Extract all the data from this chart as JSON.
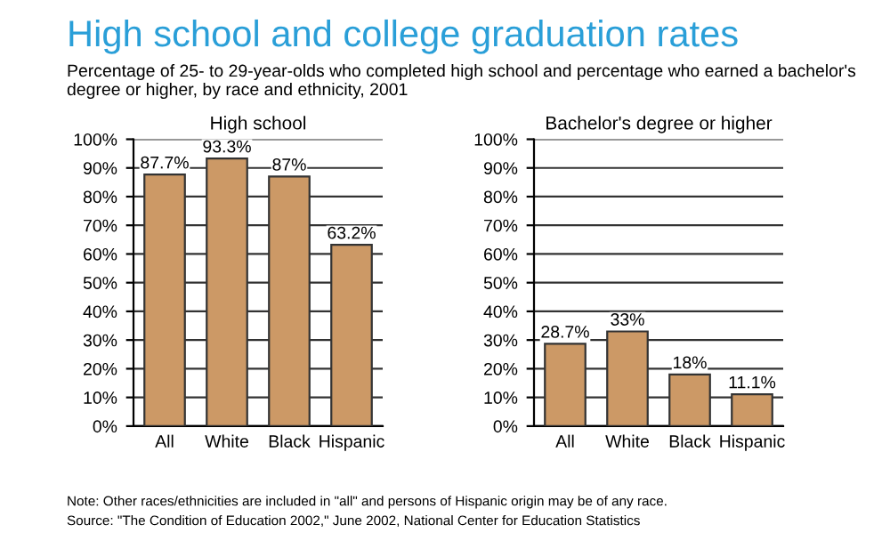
{
  "chart_data": [
    {
      "type": "other",
      "title": "High school and college graduation rates",
      "subtitle": "Percentage of 25- to 29-year-olds who completed high school and percentage who earned a bachelor's degree or higher, by race and ethnicity, 2001",
      "annotations": [
        "Note: Other races/ethnicities are included in \"all\" and persons of Hispanic origin may be of any race.",
        "Source: \"The Condition of Education 2002,\" June 2002, National Center for Education Statistics"
      ]
    },
    {
      "type": "bar",
      "title": "High school",
      "categories": [
        "All",
        "White",
        "Black",
        "Hispanic"
      ],
      "values": [
        87.7,
        93.3,
        87,
        63.2
      ],
      "value_labels": [
        "87.7%",
        "93.3%",
        "87%",
        "63.2%"
      ],
      "color": "#cc9966",
      "ylim": [
        0,
        100
      ],
      "yticks": [
        {
          "value": 0,
          "label": "0%"
        },
        {
          "value": 10,
          "label": "10%"
        },
        {
          "value": 20,
          "label": "20%"
        },
        {
          "value": 30,
          "label": "30%"
        },
        {
          "value": 40,
          "label": "40%"
        },
        {
          "value": 50,
          "label": "50%"
        },
        {
          "value": 60,
          "label": "60%"
        },
        {
          "value": 70,
          "label": "70%"
        },
        {
          "value": 80,
          "label": "80%"
        },
        {
          "value": 90,
          "label": "90%"
        },
        {
          "value": 100,
          "label": "100%"
        }
      ],
      "grid": "y"
    },
    {
      "type": "bar",
      "title": "Bachelor's degree or higher",
      "categories": [
        "All",
        "White",
        "Black",
        "Hispanic"
      ],
      "values": [
        28.7,
        33,
        18,
        11.1
      ],
      "value_labels": [
        "28.7%",
        "33%",
        "18%",
        "11.1%"
      ],
      "color": "#cc9966",
      "ylim": [
        0,
        100
      ],
      "yticks": [
        {
          "value": 0,
          "label": "0%"
        },
        {
          "value": 10,
          "label": "10%"
        },
        {
          "value": 20,
          "label": "20%"
        },
        {
          "value": 30,
          "label": "30%"
        },
        {
          "value": 40,
          "label": "40%"
        },
        {
          "value": 50,
          "label": "50%"
        },
        {
          "value": 60,
          "label": "60%"
        },
        {
          "value": 70,
          "label": "70%"
        },
        {
          "value": 80,
          "label": "80%"
        },
        {
          "value": 90,
          "label": "90%"
        },
        {
          "value": 100,
          "label": "100%"
        }
      ],
      "grid": "y"
    }
  ]
}
